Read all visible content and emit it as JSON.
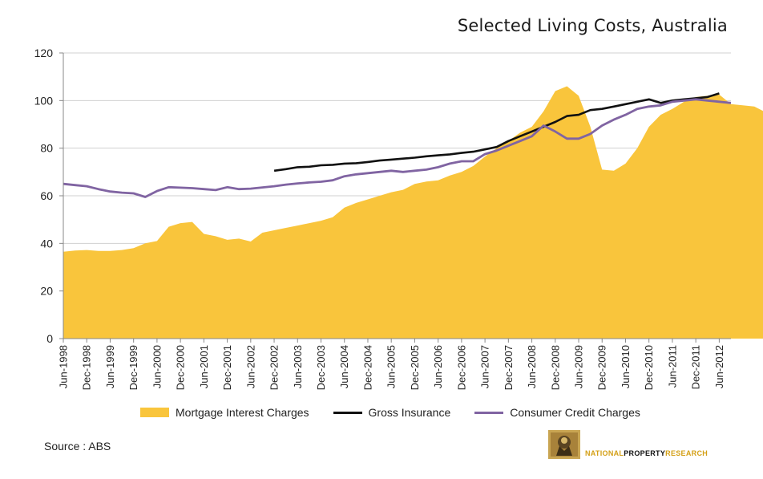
{
  "title": "Selected Living Costs, Australia",
  "source": "Source : ABS",
  "logo": {
    "part1": "NATIONAL",
    "part2": "PROPERTY",
    "part3": "RESEARCH"
  },
  "colors": {
    "mortgage": "#f9c53c",
    "insurance": "#111111",
    "credit": "#8064a2",
    "gridline": "#d0d0d0"
  },
  "chart_data": {
    "type": "area",
    "title": "Selected Living Costs, Australia",
    "xlabel": "",
    "ylabel": "",
    "ylim": [
      0,
      120
    ],
    "yticks": [
      0,
      20,
      40,
      60,
      80,
      100,
      120
    ],
    "grid": true,
    "legend_position": "bottom",
    "x_tick_labels": [
      "Jun-1998",
      "Dec-1998",
      "Jun-1999",
      "Dec-1999",
      "Jun-2000",
      "Dec-2000",
      "Jun-2001",
      "Dec-2001",
      "Jun-2002",
      "Dec-2002",
      "Jun-2003",
      "Dec-2003",
      "Jun-2004",
      "Dec-2004",
      "Jun-2005",
      "Dec-2005",
      "Jun-2006",
      "Dec-2006",
      "Jun-2007",
      "Dec-2007",
      "Jun-2008",
      "Dec-2008",
      "Jun-2009",
      "Dec-2009",
      "Jun-2010",
      "Dec-2010",
      "Jun-2011",
      "Dec-2011",
      "Jun-2012"
    ],
    "x_start": "Jun-1998",
    "x_end": "Sep-2012",
    "x_period": "quarterly",
    "series": [
      {
        "name": "Mortgage Interest Charges",
        "style": "area",
        "start": "Jun-1998",
        "values": [
          36.5,
          37,
          37.2,
          36.8,
          36.8,
          37.2,
          38,
          40,
          41,
          47,
          48.5,
          49,
          44,
          43,
          41.5,
          42,
          40.8,
          44.5,
          45.5,
          46.5,
          47.5,
          48.5,
          49.5,
          51,
          55,
          57,
          58.5,
          60,
          61.5,
          62.5,
          65,
          66,
          66.5,
          68.5,
          70,
          72.5,
          76.5,
          80,
          83,
          86.5,
          89,
          95.5,
          104,
          106,
          102,
          89,
          71,
          70.5,
          73.5,
          80,
          89,
          94,
          96.5,
          99.5,
          101.5,
          102,
          102.5,
          98.5,
          98,
          97.5,
          95
        ]
      },
      {
        "name": "Gross Insurance",
        "style": "line",
        "start": "Dec-2002",
        "values": [
          70.5,
          71.2,
          72,
          72.2,
          72.8,
          73,
          73.5,
          73.7,
          74.2,
          74.8,
          75.2,
          75.6,
          76,
          76.6,
          77,
          77.4,
          78,
          78.5,
          79.5,
          80.5,
          83,
          85,
          87,
          89,
          91,
          93.5,
          94,
          96,
          96.5,
          97.5,
          98.5,
          99.5,
          100.5,
          99,
          100,
          100.5,
          101,
          101.5,
          103
        ]
      },
      {
        "name": "Consumer Credit Charges",
        "style": "line",
        "start": "Jun-1998",
        "values": [
          65,
          64.5,
          64,
          62.8,
          61.8,
          61.3,
          61,
          59.5,
          62,
          63.6,
          63.4,
          63.2,
          62.8,
          62.4,
          63.6,
          62.8,
          63,
          63.5,
          64,
          64.7,
          65.2,
          65.6,
          65.9,
          66.5,
          68.2,
          69,
          69.5,
          70,
          70.5,
          70,
          70.5,
          71,
          72,
          73.5,
          74.5,
          74.5,
          77.5,
          79,
          81,
          83,
          85,
          89.5,
          87,
          84,
          84,
          86,
          89.5,
          92,
          94,
          96.5,
          97.5,
          98,
          99.5,
          100,
          100.5,
          100,
          99.5,
          99
        ]
      }
    ]
  }
}
